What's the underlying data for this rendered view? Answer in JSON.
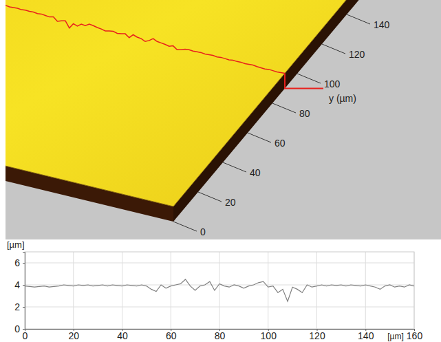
{
  "chart_data": [
    {
      "type": "surface",
      "y_label": "y (µm)",
      "xlim": [
        0,
        160
      ],
      "ylim": [
        0,
        150
      ],
      "yticks": [
        0,
        20,
        40,
        60,
        80,
        100,
        120,
        140
      ],
      "profile_y": 90
    },
    {
      "type": "line",
      "x_label": "[µm]",
      "y_label": "[µm]",
      "color": "#808080",
      "grid": true,
      "xlim": [
        0,
        160
      ],
      "ylim": [
        0,
        7
      ],
      "xticks": [
        0,
        20,
        40,
        60,
        80,
        100,
        120,
        140,
        160
      ],
      "yticks": [
        0,
        2,
        4,
        6
      ],
      "x": [
        0,
        2,
        4,
        6,
        8,
        10,
        12,
        14,
        16,
        18,
        20,
        22,
        24,
        26,
        28,
        30,
        32,
        34,
        36,
        38,
        40,
        42,
        44,
        46,
        48,
        50,
        52,
        54,
        56,
        58,
        60,
        62,
        64,
        66,
        68,
        70,
        72,
        74,
        76,
        78,
        80,
        82,
        84,
        86,
        88,
        90,
        92,
        94,
        96,
        98,
        100,
        102,
        104,
        106,
        108,
        110,
        112,
        114,
        116,
        118,
        120,
        122,
        124,
        126,
        128,
        130,
        132,
        134,
        136,
        138,
        140,
        142,
        144,
        146,
        148,
        150,
        152,
        154,
        156,
        158,
        160
      ],
      "values": [
        3.9,
        3.85,
        3.8,
        3.85,
        3.9,
        3.8,
        3.85,
        3.9,
        4.0,
        3.95,
        3.9,
        4.0,
        3.95,
        4.0,
        3.9,
        3.95,
        4.0,
        3.9,
        4.0,
        3.95,
        3.9,
        4.0,
        3.95,
        3.9,
        4.0,
        3.9,
        3.6,
        3.4,
        4.0,
        3.7,
        3.9,
        4.0,
        4.1,
        4.5,
        3.9,
        3.5,
        3.9,
        4.0,
        4.3,
        3.5,
        4.1,
        3.9,
        3.8,
        4.0,
        3.9,
        3.7,
        3.9,
        4.0,
        4.2,
        4.3,
        3.8,
        3.9,
        3.3,
        3.6,
        2.5,
        3.8,
        3.6,
        3.3,
        4.0,
        3.8,
        3.9,
        4.0,
        3.9,
        4.0,
        3.95,
        4.0,
        3.9,
        4.0,
        3.95,
        3.9,
        4.0,
        3.9,
        3.8,
        3.6,
        3.9,
        4.0,
        3.8,
        3.9,
        3.8,
        4.0,
        3.9
      ]
    }
  ]
}
